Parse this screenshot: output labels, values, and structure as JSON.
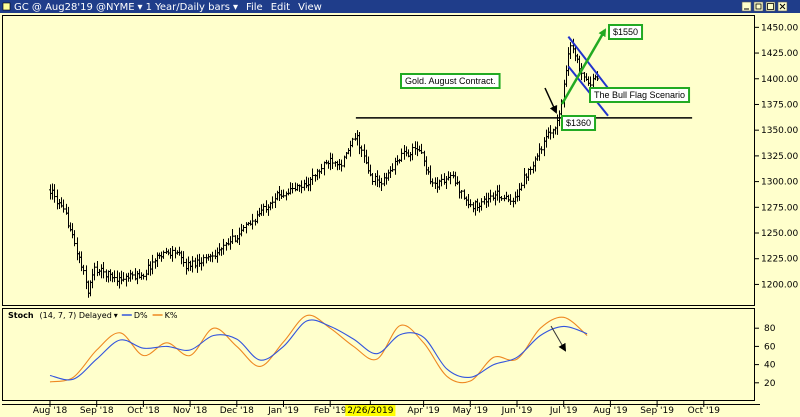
{
  "window": {
    "title": "GC @ Aug28'19 @NYME",
    "timeframe": "1 Year/Daily bars",
    "menus": [
      "File",
      "Edit",
      "View"
    ]
  },
  "colors": {
    "background": "#ffffcc",
    "titlebar": "#1f3d8a",
    "bars": "#000000",
    "d_line": "#3355dd",
    "k_line": "#ee8822",
    "green": "#22aa22",
    "blue": "#2233cc",
    "date_highlight": "#ffff00"
  },
  "chart_data": [
    {
      "type": "ohlc",
      "instrument": "GC @ Aug28'19 @NYME",
      "interval": "1 Year/Daily bars",
      "ylim": [
        1180,
        1462
      ],
      "yticks": [
        "1200.00",
        "1225.00",
        "1250.00",
        "1275.00",
        "1300.00",
        "1325.00",
        "1350.00",
        "1375.00",
        "1400.00",
        "1425.00",
        "1450.00"
      ],
      "xticks": [
        "Aug '18",
        "Sep '18",
        "Oct '18",
        "Nov '18",
        "Dec '18",
        "Jan '19",
        "Feb '19",
        "2/26/2019",
        "Apr '19",
        "May '19",
        "Jun '19",
        "Jul '19",
        "Aug '19",
        "Sep '19",
        "Oct '19"
      ],
      "highlighted_xtick": "2/26/2019",
      "price_path": [
        {
          "m": 0.0,
          "v": 1292
        },
        {
          "m": 0.35,
          "v": 1265
        },
        {
          "m": 0.55,
          "v": 1235
        },
        {
          "m": 0.75,
          "v": 1205
        },
        {
          "m": 0.8,
          "v": 1192
        },
        {
          "m": 0.95,
          "v": 1215
        },
        {
          "m": 1.5,
          "v": 1205
        },
        {
          "m": 2.0,
          "v": 1210
        },
        {
          "m": 2.35,
          "v": 1230
        },
        {
          "m": 2.7,
          "v": 1232
        },
        {
          "m": 2.9,
          "v": 1218
        },
        {
          "m": 3.3,
          "v": 1225
        },
        {
          "m": 3.7,
          "v": 1235
        },
        {
          "m": 4.3,
          "v": 1260
        },
        {
          "m": 4.8,
          "v": 1285
        },
        {
          "m": 5.5,
          "v": 1298
        },
        {
          "m": 6.0,
          "v": 1322
        },
        {
          "m": 6.25,
          "v": 1318
        },
        {
          "m": 6.55,
          "v": 1345
        },
        {
          "m": 6.85,
          "v": 1305
        },
        {
          "m": 7.1,
          "v": 1298
        },
        {
          "m": 7.5,
          "v": 1325
        },
        {
          "m": 7.9,
          "v": 1332
        },
        {
          "m": 8.2,
          "v": 1296
        },
        {
          "m": 8.6,
          "v": 1305
        },
        {
          "m": 9.0,
          "v": 1275
        },
        {
          "m": 9.6,
          "v": 1288
        },
        {
          "m": 9.9,
          "v": 1278
        },
        {
          "m": 10.1,
          "v": 1300
        },
        {
          "m": 10.6,
          "v": 1340
        },
        {
          "m": 10.9,
          "v": 1362
        },
        {
          "m": 11.0,
          "v": 1395
        },
        {
          "m": 11.12,
          "v": 1435
        },
        {
          "m": 11.35,
          "v": 1410
        },
        {
          "m": 11.55,
          "v": 1395
        },
        {
          "m": 11.75,
          "v": 1402
        }
      ],
      "bull_flag": {
        "support_level": 1362,
        "support_start_month": 6.55,
        "support_end_month": 13.75,
        "channel": {
          "top_start": [
            11.1,
            1441
          ],
          "top_end": [
            12.05,
            1385
          ],
          "bottom_start": [
            11.1,
            1412
          ],
          "bottom_end": [
            11.95,
            1364
          ]
        },
        "target": 1550
      },
      "annotations": [
        {
          "text": "$1550",
          "box_color": "green"
        },
        {
          "text": "Gold. August Contract.",
          "box_color": "green"
        },
        {
          "text": "The Bull Flag Scenario",
          "box_color": "green"
        },
        {
          "text": "$1360",
          "box_color": "green"
        }
      ]
    },
    {
      "type": "line",
      "indicator": "Stoch",
      "params": "(14, 7, 7) Delayed",
      "ylim": [
        0,
        100
      ],
      "yticks": [
        "20",
        "40",
        "60",
        "80"
      ],
      "series": [
        {
          "name": "D%",
          "x": [
            0.0,
            0.5,
            1.0,
            1.5,
            2.0,
            2.5,
            3.0,
            3.5,
            4.0,
            4.5,
            5.0,
            5.5,
            6.0,
            6.5,
            7.0,
            7.5,
            8.0,
            8.5,
            9.0,
            9.5,
            10.0,
            10.5,
            11.0,
            11.5
          ],
          "values": [
            28,
            24,
            46,
            67,
            58,
            60,
            56,
            72,
            68,
            45,
            60,
            88,
            82,
            68,
            52,
            73,
            70,
            35,
            26,
            40,
            48,
            72,
            82,
            74
          ]
        },
        {
          "name": "K%",
          "x": [
            0.0,
            0.5,
            1.0,
            1.5,
            2.0,
            2.5,
            3.0,
            3.5,
            4.0,
            4.5,
            5.0,
            5.5,
            6.0,
            6.5,
            7.0,
            7.5,
            8.0,
            8.5,
            9.0,
            9.5,
            10.0,
            10.5,
            11.0,
            11.5
          ],
          "values": [
            21,
            26,
            56,
            75,
            50,
            64,
            50,
            80,
            60,
            38,
            65,
            94,
            80,
            60,
            46,
            83,
            64,
            27,
            22,
            48,
            46,
            80,
            92,
            72
          ]
        }
      ]
    }
  ]
}
